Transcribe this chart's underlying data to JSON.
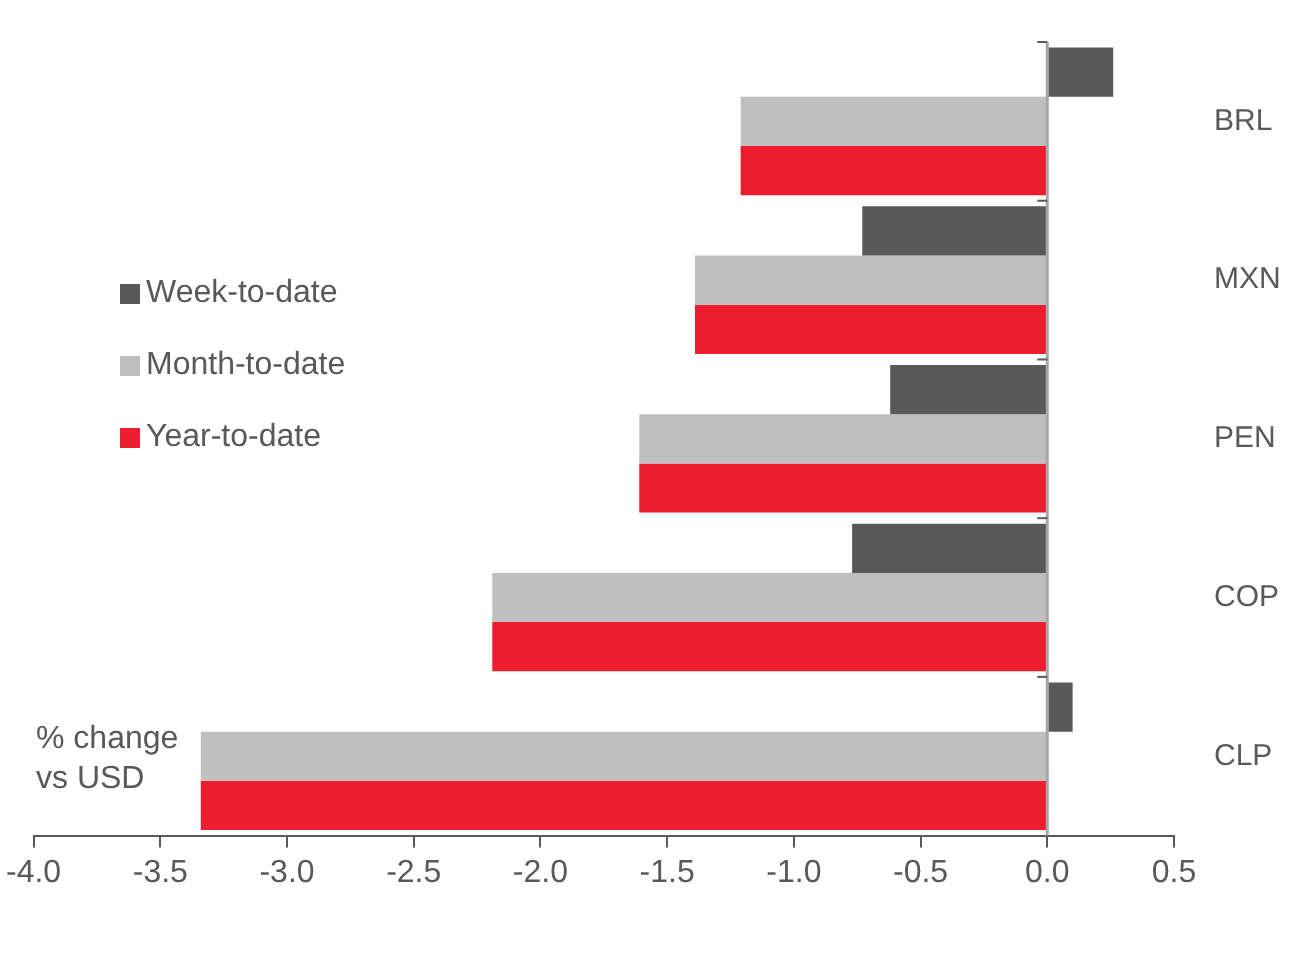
{
  "chart_data": {
    "type": "bar",
    "orientation": "horizontal",
    "categories": [
      "BRL",
      "MXN",
      "PEN",
      "COP",
      "CLP"
    ],
    "series": [
      {
        "name": "Week-to-date",
        "color": "#595959",
        "values": [
          0.26,
          -0.73,
          -0.62,
          -0.77,
          0.1
        ]
      },
      {
        "name": "Month-to-date",
        "color": "#bfbfbf",
        "values": [
          -1.21,
          -1.39,
          -1.61,
          -2.19,
          -3.34
        ]
      },
      {
        "name": "Year-to-date",
        "color": "#ed1c2e",
        "values": [
          -1.21,
          -1.39,
          -1.61,
          -2.19,
          -3.34
        ]
      }
    ],
    "xlim": [
      -4.0,
      0.5
    ],
    "xticks": [
      {
        "value": -4,
        "label": "-4.0"
      },
      {
        "value": -3.5,
        "label": "-3.5"
      },
      {
        "value": -3,
        "label": "-3.0"
      },
      {
        "value": -2.5,
        "label": "-2.5"
      },
      {
        "value": -2,
        "label": "-2.0"
      },
      {
        "value": -1.5,
        "label": "-1.5"
      },
      {
        "value": -1,
        "label": "-1.0"
      },
      {
        "value": -0.5,
        "label": "-0.5"
      },
      {
        "value": 0,
        "label": "0.0"
      },
      {
        "value": 0.5,
        "label": "0.5"
      }
    ],
    "xlabel": "% change vs USD",
    "grid": false,
    "legend": "left",
    "ref_lines": [
      {
        "axis": "x",
        "value": 0,
        "color": "#a6a6a6"
      }
    ]
  }
}
